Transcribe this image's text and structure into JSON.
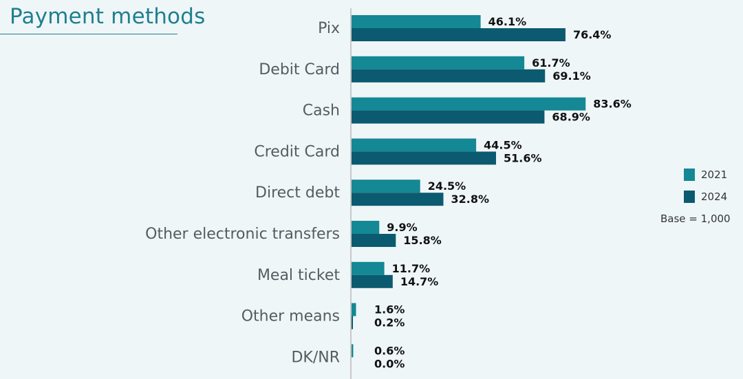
{
  "title": "Payment methods",
  "colors": {
    "2021": "#148895",
    "2024": "#0b5a70",
    "axis": "#c8c8c8"
  },
  "legend": {
    "items": [
      "2021",
      "2024"
    ]
  },
  "base_note": "Base = 1,000",
  "chart_data": {
    "type": "bar",
    "orientation": "horizontal",
    "categories": [
      "Pix",
      "Debit Card",
      "Cash",
      "Credit Card",
      "Direct debt",
      "Other electronic transfers",
      "Meal ticket",
      "Other means",
      "DK/NR"
    ],
    "series": [
      {
        "name": "2021",
        "values": [
          46.1,
          61.7,
          83.6,
          44.5,
          24.5,
          9.9,
          11.7,
          1.6,
          0.6
        ],
        "labels": [
          "46.1%",
          "61.7%",
          "83.6%",
          "44.5%",
          "24.5%",
          "9.9%",
          "11.7%",
          "1.6%",
          "0.6%"
        ]
      },
      {
        "name": "2024",
        "values": [
          76.4,
          69.1,
          68.9,
          51.6,
          32.8,
          15.8,
          14.7,
          0.2,
          0.0
        ],
        "labels": [
          "76.4%",
          "69.1%",
          "68.9%",
          "51.6%",
          "32.8%",
          "15.8%",
          "14.7%",
          "0.2%",
          "0.0%"
        ]
      }
    ],
    "unit": "%",
    "xlim": [
      0,
      100
    ],
    "grid": false,
    "legend_position": "right"
  }
}
